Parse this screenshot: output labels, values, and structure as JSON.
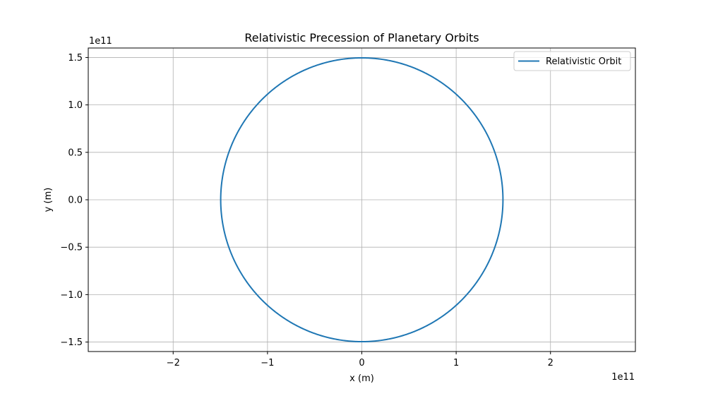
{
  "chart_data": {
    "type": "line",
    "title": "Relativistic Precession of Planetary Orbits",
    "xlabel": "x (m)",
    "ylabel": "y (m)",
    "x_offset_label": "1e11",
    "y_offset_label": "1e11",
    "xlim": [
      -2.9,
      2.9
    ],
    "ylim": [
      -1.6,
      1.6
    ],
    "xticks": [
      -2,
      -1,
      0,
      1,
      2
    ],
    "xtick_labels": [
      "−2",
      "−1",
      "0",
      "1",
      "2"
    ],
    "yticks": [
      -1.5,
      -1.0,
      -0.5,
      0.0,
      0.5,
      1.0,
      1.5
    ],
    "ytick_labels": [
      "−1.5",
      "−1.0",
      "−0.5",
      "0.0",
      "0.5",
      "1.0",
      "1.5"
    ],
    "grid": true,
    "legend_position": "top-right",
    "series": [
      {
        "name": "Relativistic Orbit",
        "color": "#1f77b4",
        "shape": "circle",
        "center": [
          0,
          0
        ],
        "radius": 1.496
      }
    ]
  }
}
